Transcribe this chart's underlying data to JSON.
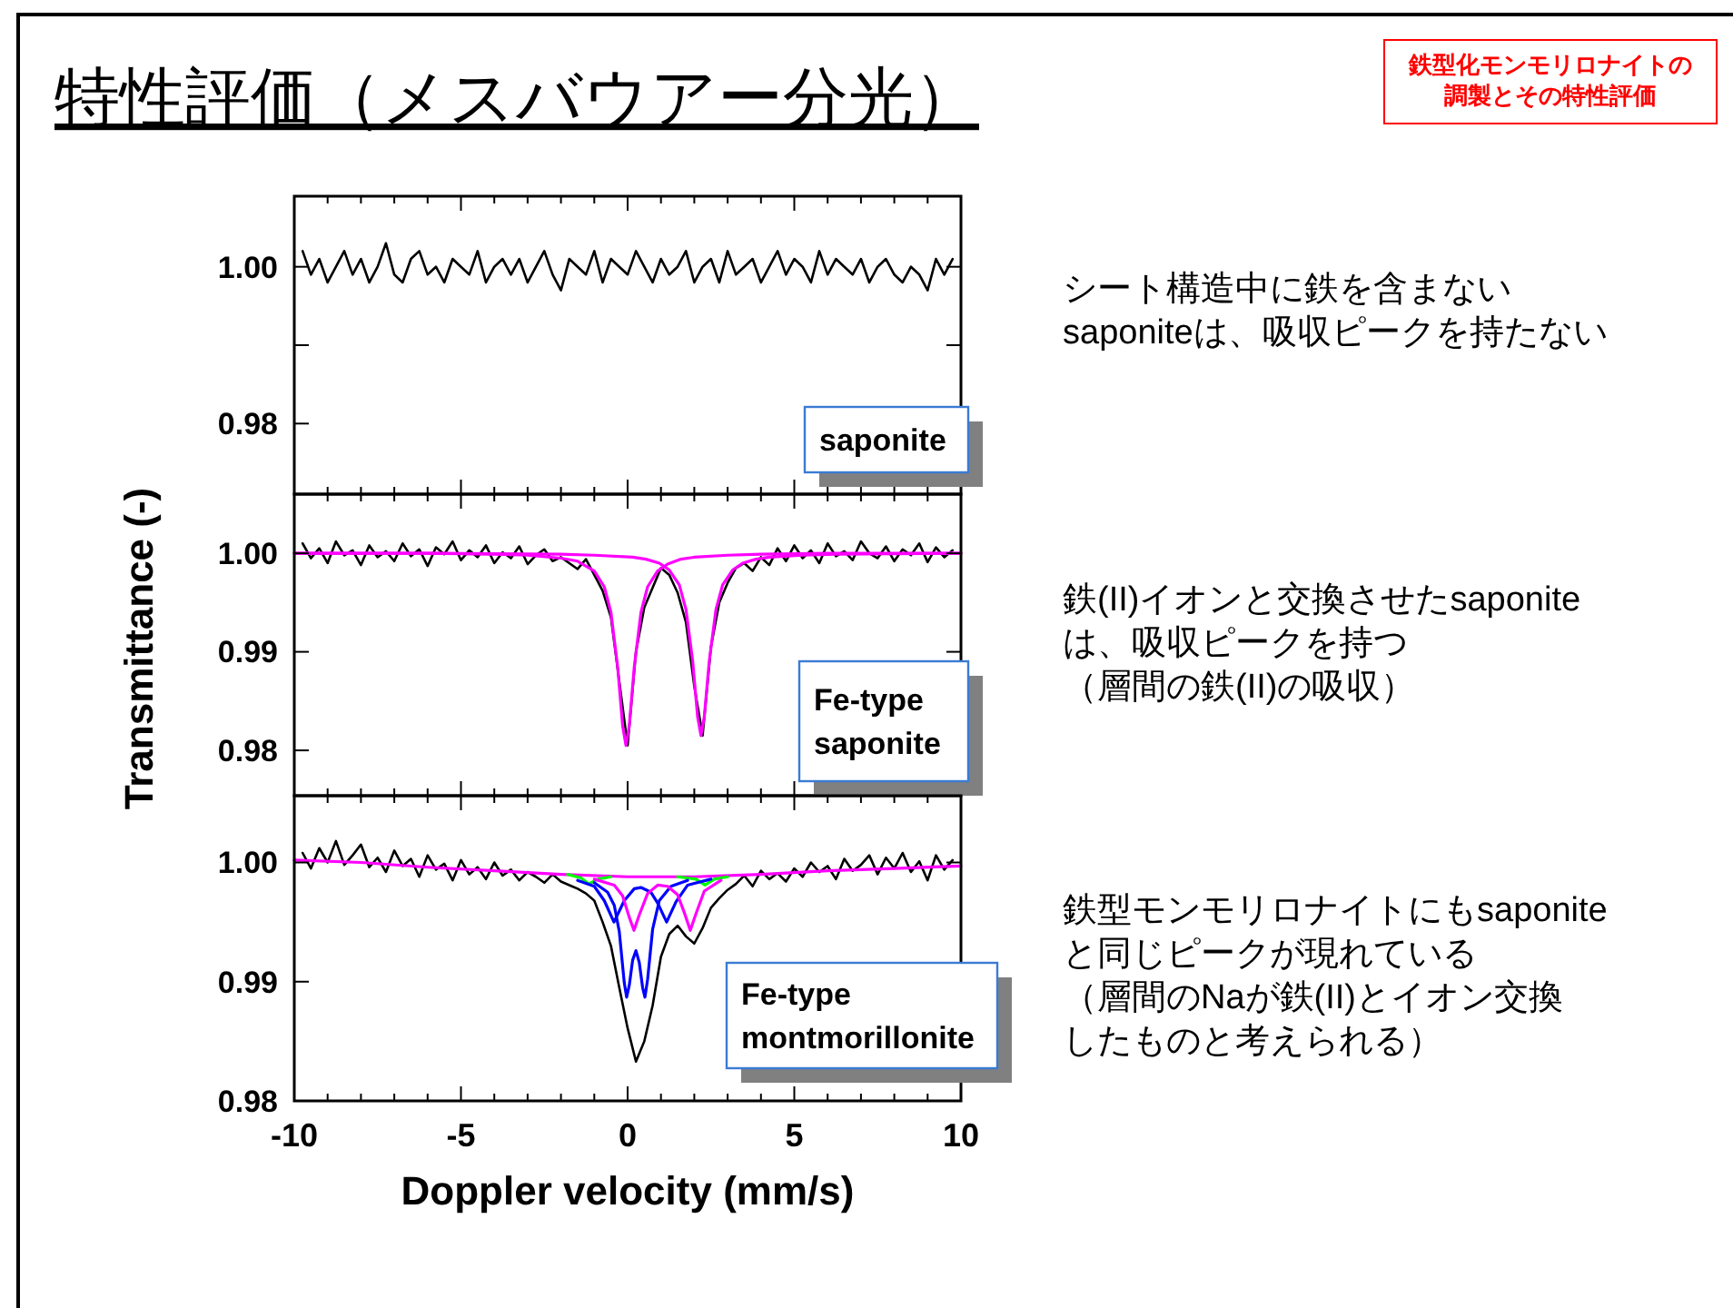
{
  "chart_data": [
    {
      "type": "line",
      "title": "特性評価（メスバウアー分光）",
      "annotations": [
        "saponite",
        "シート構造中に鉄を含まない\nsaponiteは、吸収ピークを持たない",
        "鉄型化モンモリロナイトの調製とその特性評価"
      ],
      "xlim": [
        -10,
        10
      ],
      "ylim": [
        0.971,
        1.009
      ],
      "xticks": [
        {
          "value": -10,
          "label": null
        },
        {
          "value": -9,
          "label": null
        },
        {
          "value": -8,
          "label": null
        },
        {
          "value": -7,
          "label": null
        },
        {
          "value": -6,
          "label": null
        },
        {
          "value": -5,
          "label": null
        },
        {
          "value": -4,
          "label": null
        },
        {
          "value": -3,
          "label": null
        },
        {
          "value": -2,
          "label": null
        },
        {
          "value": -1,
          "label": null
        },
        {
          "value": 0,
          "label": null
        },
        {
          "value": 1,
          "label": null
        },
        {
          "value": 2,
          "label": null
        },
        {
          "value": 3,
          "label": null
        },
        {
          "value": 4,
          "label": null
        },
        {
          "value": 5,
          "label": null
        },
        {
          "value": 6,
          "label": null
        },
        {
          "value": 7,
          "label": null
        },
        {
          "value": 8,
          "label": null
        },
        {
          "value": 9,
          "label": null
        },
        {
          "value": 10,
          "label": null
        }
      ],
      "yticks": [
        {
          "value": 0.98,
          "label": "0.98"
        },
        {
          "value": 0.99,
          "label": null
        },
        {
          "value": 1.0,
          "label": "1.00"
        }
      ],
      "tick_labels": "y",
      "x": [
        -9.75,
        -9.5,
        -9.25,
        -9,
        -8.75,
        -8.5,
        -8.25,
        -8,
        -7.75,
        -7.5,
        -7.25,
        -7,
        -6.75,
        -6.5,
        -6.25,
        -6,
        -5.75,
        -5.5,
        -5.25,
        -5,
        -4.75,
        -4.5,
        -4.25,
        -4,
        -3.75,
        -3.5,
        -3.25,
        -3,
        -2.75,
        -2.5,
        -2.25,
        -2,
        -1.75,
        -1.5,
        -1.25,
        -1,
        -0.75,
        -0.5,
        -0.25,
        0,
        0.25,
        0.5,
        0.75,
        1,
        1.25,
        1.5,
        1.75,
        2,
        2.25,
        2.5,
        2.75,
        3,
        3.25,
        3.5,
        3.75,
        4,
        4.25,
        4.5,
        4.75,
        5,
        5.25,
        5.5,
        5.75,
        6,
        6.25,
        6.5,
        6.75,
        7,
        7.25,
        7.5,
        7.75,
        8,
        8.25,
        8.5,
        8.75,
        9,
        9.25,
        9.5,
        9.75
      ],
      "series": [
        {
          "color": "#000000",
          "values": [
            1.002,
            0.999,
            1.001,
            0.998,
            1.0,
            1.002,
            0.999,
            1.001,
            0.998,
            1.0,
            1.003,
            0.999,
            0.998,
            1.001,
            1.002,
            0.999,
            1.0,
            0.998,
            1.001,
            1.0,
            0.999,
            1.002,
            0.998,
            1.0,
            1.001,
            0.999,
            1.001,
            0.998,
            1.0,
            1.002,
            0.999,
            0.997,
            1.001,
            1.0,
            0.999,
            1.002,
            0.998,
            1.001,
            1.0,
            0.999,
            1.002,
            1.0,
            0.998,
            1.001,
            0.999,
            1.0,
            1.002,
            0.998,
            1.0,
            1.001,
            0.998,
            1.002,
            0.999,
            1.0,
            1.001,
            0.998,
            1.0,
            1.002,
            0.999,
            1.001,
            1.0,
            0.998,
            1.002,
            0.999,
            1.001,
            1.0,
            0.999,
            1.001,
            0.998,
            1.0,
            1.001,
            0.999,
            0.998,
            1.0,
            0.999,
            0.997,
            1.001,
            0.999,
            1.001
          ]
        }
      ]
    },
    {
      "type": "line",
      "ylabel": "Transmittance (-)",
      "annotations": [
        "Fe-type\nsaponite",
        "鉄(II)イオンと交換させたsaponite\nは、吸収ピークを持つ",
        "（層間の鉄(II)の吸収）"
      ],
      "xlim": [
        -10,
        10
      ],
      "ylim": [
        0.9754,
        1.006
      ],
      "xticks": [
        {
          "value": -10,
          "label": null
        },
        {
          "value": -9,
          "label": null
        },
        {
          "value": -8,
          "label": null
        },
        {
          "value": -7,
          "label": null
        },
        {
          "value": -6,
          "label": null
        },
        {
          "value": -5,
          "label": null
        },
        {
          "value": -4,
          "label": null
        },
        {
          "value": -3,
          "label": null
        },
        {
          "value": -2,
          "label": null
        },
        {
          "value": -1,
          "label": null
        },
        {
          "value": 0,
          "label": null
        },
        {
          "value": 1,
          "label": null
        },
        {
          "value": 2,
          "label": null
        },
        {
          "value": 3,
          "label": null
        },
        {
          "value": 4,
          "label": null
        },
        {
          "value": 5,
          "label": null
        },
        {
          "value": 6,
          "label": null
        },
        {
          "value": 7,
          "label": null
        },
        {
          "value": 8,
          "label": null
        },
        {
          "value": 9,
          "label": null
        },
        {
          "value": 10,
          "label": null
        }
      ],
      "yticks": [
        {
          "value": 0.98,
          "label": "0.98"
        },
        {
          "value": 0.99,
          "label": "0.99"
        },
        {
          "value": 1.0,
          "label": "1.00"
        }
      ],
      "tick_labels": "y",
      "x": [
        -9.75,
        -9.5,
        -9.25,
        -9,
        -8.75,
        -8.5,
        -8.25,
        -8,
        -7.75,
        -7.5,
        -7.25,
        -7,
        -6.75,
        -6.5,
        -6.25,
        -6,
        -5.75,
        -5.5,
        -5.25,
        -5,
        -4.75,
        -4.5,
        -4.25,
        -4,
        -3.75,
        -3.5,
        -3.25,
        -3,
        -2.75,
        -2.5,
        -2.25,
        -2,
        -1.75,
        -1.5,
        -1.25,
        -1,
        -0.75,
        -0.5,
        -0.25,
        0,
        0.25,
        0.5,
        0.75,
        1,
        1.25,
        1.5,
        1.75,
        2,
        2.25,
        2.5,
        2.75,
        3,
        3.25,
        3.5,
        3.75,
        4,
        4.25,
        4.5,
        4.75,
        5,
        5.25,
        5.5,
        5.75,
        6,
        6.25,
        6.5,
        6.75,
        7,
        7.25,
        7.5,
        7.75,
        8,
        8.25,
        8.5,
        8.75,
        9,
        9.25,
        9.5,
        9.75
      ],
      "series": [
        {
          "color": "#000000",
          "values": [
            1.001,
            0.9995,
            1.0005,
            0.999,
            1.0012,
            0.9998,
            1.0003,
            0.9988,
            1.0008,
            0.9996,
            1.0002,
            0.9992,
            1.001,
            0.9997,
            1.0004,
            0.9987,
            1.0006,
            0.9999,
            1.0012,
            0.9993,
            1.0003,
            0.9996,
            1.0008,
            0.999,
            1.0001,
            0.9995,
            1.0007,
            0.9989,
            0.9998,
            1.0004,
            0.9992,
            0.9996,
            0.999,
            0.9984,
            0.9994,
            0.9978,
            0.9962,
            0.9935,
            0.987,
            0.9805,
            0.99,
            0.9945,
            0.9965,
            0.9985,
            0.9978,
            0.996,
            0.993,
            0.9865,
            0.9815,
            0.9905,
            0.995,
            0.997,
            0.9985,
            0.999,
            0.9982,
            0.9996,
            0.9988,
            1.0005,
            0.9992,
            1.0008,
            0.9995,
            1.0003,
            0.999,
            1.001,
            0.9997,
            1.0002,
            0.9993,
            1.0012,
            1.0,
            0.9995,
            1.0007,
            0.9992,
            1.0004,
            0.9998,
            1.001,
            0.9991,
            1.0006,
            0.9996,
            1.0003
          ]
        },
        {
          "color": "#ff00ff",
          "x": [
            -10,
            -6,
            -4,
            -3,
            -2,
            -1.5,
            -1,
            -0.7,
            -0.5,
            -0.3,
            -0.15,
            -0.05,
            0.05,
            0.2,
            0.4,
            0.6,
            0.9,
            1.2,
            1.6,
            2,
            3,
            4,
            6,
            10
          ],
          "values": [
            1.0,
            1.0,
            0.9999,
            0.9998,
            0.9995,
            0.9992,
            0.9982,
            0.9966,
            0.994,
            0.9885,
            0.9825,
            0.9805,
            0.9825,
            0.9885,
            0.994,
            0.9966,
            0.9982,
            0.9989,
            0.9994,
            0.9996,
            0.9998,
            0.9999,
            1.0,
            1.0
          ]
        },
        {
          "color": "#ff00ff",
          "x": [
            -10,
            -6,
            -2,
            -1,
            0.15,
            0.55,
            0.95,
            1.25,
            1.55,
            1.75,
            1.95,
            2.1,
            2.2,
            2.3,
            2.45,
            2.65,
            2.85,
            3.15,
            3.45,
            3.85,
            4.25,
            5.25,
            6.25,
            10
          ],
          "values": [
            1.0,
            1.0,
            0.9999,
            0.9998,
            0.9996,
            0.9994,
            0.999,
            0.9983,
            0.9968,
            0.9943,
            0.9891,
            0.9834,
            0.9815,
            0.9834,
            0.9891,
            0.9943,
            0.9968,
            0.9983,
            0.999,
            0.9994,
            0.9996,
            0.9998,
            0.9999,
            1.0
          ]
        }
      ]
    },
    {
      "type": "line",
      "xlabel": "Doppler velocity (mm/s)",
      "annotations": [
        "Fe-type\nmontmorillonite",
        "鉄型モンモリロナイトにもsaponite\nと同じピークが現れている",
        "（層間のNaが鉄(II)とイオン交換したものと考えられる）"
      ],
      "xlim": [
        -10,
        10
      ],
      "ylim": [
        0.98,
        1.0056
      ],
      "xticks": [
        {
          "value": -10,
          "label": "-10"
        },
        {
          "value": -9,
          "label": null
        },
        {
          "value": -8,
          "label": null
        },
        {
          "value": -7,
          "label": null
        },
        {
          "value": -6,
          "label": null
        },
        {
          "value": -5,
          "label": "-5"
        },
        {
          "value": -4,
          "label": null
        },
        {
          "value": -3,
          "label": null
        },
        {
          "value": -2,
          "label": null
        },
        {
          "value": -1,
          "label": null
        },
        {
          "value": 0,
          "label": "0"
        },
        {
          "value": 1,
          "label": null
        },
        {
          "value": 2,
          "label": null
        },
        {
          "value": 3,
          "label": null
        },
        {
          "value": 4,
          "label": null
        },
        {
          "value": 5,
          "label": "5"
        },
        {
          "value": 6,
          "label": null
        },
        {
          "value": 7,
          "label": null
        },
        {
          "value": 8,
          "label": null
        },
        {
          "value": 9,
          "label": null
        },
        {
          "value": 10,
          "label": "10"
        }
      ],
      "yticks": [
        {
          "value": 0.98,
          "label": "0.98"
        },
        {
          "value": 0.99,
          "label": "0.99"
        },
        {
          "value": 1.0,
          "label": "1.00"
        }
      ],
      "x": [
        -9.75,
        -9.5,
        -9.25,
        -9,
        -8.75,
        -8.5,
        -8.25,
        -8,
        -7.75,
        -7.5,
        -7.25,
        -7,
        -6.75,
        -6.5,
        -6.25,
        -6,
        -5.75,
        -5.5,
        -5.25,
        -5,
        -4.75,
        -4.5,
        -4.25,
        -4,
        -3.75,
        -3.5,
        -3.25,
        -3,
        -2.75,
        -2.5,
        -2.25,
        -2,
        -1.75,
        -1.5,
        -1.25,
        -1,
        -0.75,
        -0.5,
        -0.25,
        0,
        0.25,
        0.5,
        0.75,
        1,
        1.25,
        1.5,
        1.75,
        2,
        2.25,
        2.5,
        2.75,
        3,
        3.25,
        3.5,
        3.75,
        4,
        4.25,
        4.5,
        4.75,
        5,
        5.25,
        5.5,
        5.75,
        6,
        6.25,
        6.5,
        6.75,
        7,
        7.25,
        7.5,
        7.75,
        8,
        8.25,
        8.5,
        8.75,
        9,
        9.25,
        9.5,
        9.75
      ],
      "series": [
        {
          "color": "#000000",
          "values": [
            1.0008,
            0.9995,
            1.0012,
            1.0,
            1.0018,
            0.9998,
            1.0006,
            1.0015,
            0.9996,
            1.0004,
            0.9992,
            1.001,
            0.9997,
            1.0003,
            0.9988,
            1.0006,
            0.9994,
            0.9999,
            0.9985,
            1.0002,
            0.999,
            0.9996,
            0.9986,
            1.0,
            0.9989,
            0.9994,
            0.9985,
            0.9992,
            0.9988,
            0.9983,
            0.999,
            0.9984,
            0.9981,
            0.9978,
            0.9974,
            0.9968,
            0.995,
            0.993,
            0.9895,
            0.9861,
            0.9833,
            0.985,
            0.988,
            0.9921,
            0.994,
            0.9947,
            0.9938,
            0.9932,
            0.9945,
            0.9962,
            0.997,
            0.9977,
            0.9982,
            0.9989,
            0.998,
            0.9993,
            0.9986,
            0.9991,
            0.9984,
            0.9995,
            0.9988,
            1.0,
            0.9992,
            0.9997,
            0.9986,
            1.0003,
            0.9993,
            0.9998,
            1.0006,
            0.999,
            1.0004,
            0.9995,
            1.0008,
            0.9992,
            1.0001,
            0.9985,
            1.0006,
            0.9994,
            1.0002
          ]
        },
        {
          "color": "#ff00ff",
          "x": [
            -10,
            -8,
            -6,
            -4,
            -2,
            0,
            2,
            4,
            6,
            8,
            10
          ],
          "values": [
            1.0002,
            1.0,
            0.9996,
            0.9993,
            0.999,
            0.9988,
            0.9988,
            0.999,
            0.9993,
            0.9995,
            0.9997
          ]
        },
        {
          "color": "#00ff00",
          "x": [
            -1.8,
            -1.4,
            -1.17,
            -0.9,
            -0.5,
            0.5,
            1.5,
            2.05,
            2.32,
            2.6,
            3
          ],
          "values": [
            0.999,
            0.9987,
            0.9982,
            0.9986,
            0.9988,
            null,
            0.9988,
            0.9986,
            0.9981,
            0.9986,
            0.9988
          ]
        },
        {
          "color": "#0000ff",
          "x": [
            -1.5,
            -1,
            -0.7,
            -0.41,
            -0.1,
            0.2,
            0.4,
            0.7,
            0.9,
            1.17,
            1.45,
            1.8,
            2.5
          ],
          "values": [
            0.9985,
            0.998,
            0.9968,
            0.995,
            0.9968,
            0.9978,
            0.9979,
            0.9975,
            0.9966,
            0.995,
            0.9967,
            0.9981,
            0.9986
          ]
        },
        {
          "color": "#0000ff",
          "x": [
            -1,
            -0.6,
            -0.4,
            -0.25,
            -0.1,
            -0.03,
            0.05,
            0.15,
            0.25,
            0.35,
            0.45,
            0.52,
            0.6,
            0.75,
            0.95,
            1.3,
            1.8
          ],
          "values": [
            0.9983,
            0.9975,
            0.9964,
            0.9942,
            0.9899,
            0.9887,
            0.9897,
            0.9918,
            0.9926,
            0.9916,
            0.9895,
            0.9887,
            0.9902,
            0.9944,
            0.9968,
            0.998,
            0.9985
          ]
        },
        {
          "color": "#ff00ff",
          "x": [
            -1,
            -0.4,
            -0.15,
            0.05,
            0.19,
            0.35,
            0.6,
            0.9,
            1.2,
            1.5,
            1.7,
            1.88,
            2.05,
            2.3,
            2.8
          ],
          "values": [
            0.9986,
            0.9981,
            0.9972,
            0.9954,
            0.9943,
            0.9956,
            0.9974,
            0.9981,
            0.998,
            0.9973,
            0.9958,
            0.9943,
            0.9957,
            0.9976,
            0.9985
          ]
        }
      ]
    }
  ]
}
